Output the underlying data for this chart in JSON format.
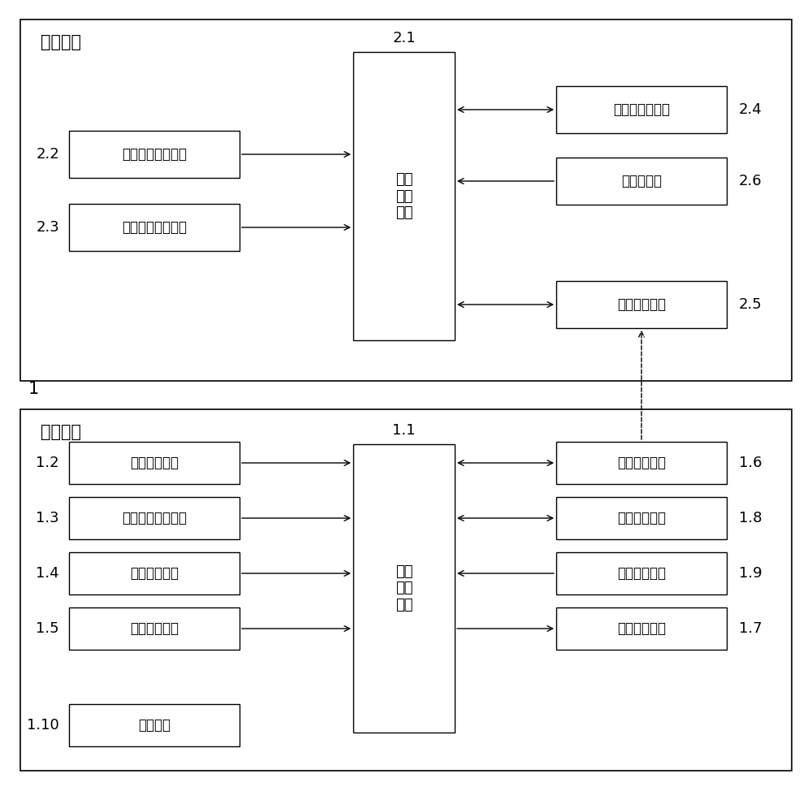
{
  "fig_width": 10.0,
  "fig_height": 9.74,
  "bg_color": "#ffffff",
  "box_color": "#ffffff",
  "box_edge_color": "#000000",
  "text_color": "#000000",
  "font_size": 13,
  "label_font_size": 13,
  "upper_system_label": "地上系统",
  "lower_system_label": "地下系统",
  "lower_outer_number": "1",
  "upper_center_box": {
    "label": "地上\n微处\n理器",
    "number": "2.1"
  },
  "lower_center_box": {
    "label": "地下\n微处\n理器",
    "number": "1.1"
  },
  "upper_left_boxes": [
    {
      "label": "触探深度测量电路",
      "number": "2.2"
    },
    {
      "label": "勘测环境监测电路",
      "number": "2.3"
    }
  ],
  "upper_right_boxes": [
    {
      "label": "触摸屏人机接口",
      "number": "2.4",
      "arrow": "bidir"
    },
    {
      "label": "上位机接口",
      "number": "2.6",
      "arrow": "left"
    },
    {
      "label": "无线接收电路",
      "number": "2.5",
      "arrow": "bidir"
    }
  ],
  "lower_left_boxes": [
    {
      "label": "数据备份电路",
      "number": "1.2",
      "has_arrow": true
    },
    {
      "label": "倾斜角度测量电路",
      "number": "1.3",
      "has_arrow": true
    },
    {
      "label": "阻力测量电路",
      "number": "1.4",
      "has_arrow": true
    },
    {
      "label": "温度测量电路",
      "number": "1.5",
      "has_arrow": true
    },
    {
      "label": "供电电路",
      "number": "1.10",
      "has_arrow": false
    }
  ],
  "lower_right_boxes": [
    {
      "label": "无线通信电路",
      "number": "1.6",
      "arrow": "bidir"
    },
    {
      "label": "串行通信电路",
      "number": "1.8",
      "arrow": "bidir"
    },
    {
      "label": "比较唤醒电路",
      "number": "1.9",
      "arrow": "left"
    },
    {
      "label": "同步时钟电路",
      "number": "1.7",
      "arrow": "right"
    }
  ]
}
